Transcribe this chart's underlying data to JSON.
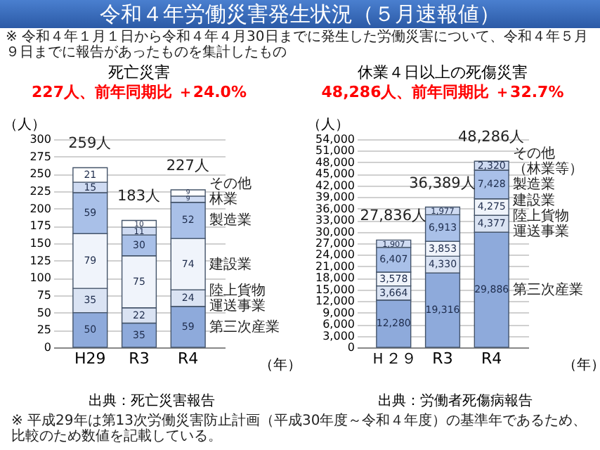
{
  "chart_data": [
    {
      "type": "other",
      "title": "令和４年労働災害発生状況（５月速報値）",
      "annotations": [
        "※ 令和４年１月１日から令和４年４月30日までに発生した労働災害について、令和４年５月９日までに報告があったものを集計したもの",
        "※ 平成29年は第13次労働災害防止計画（平成30年度～令和４年度）の基準年であるため、比較のため数値を記載している。"
      ]
    },
    {
      "type": "bar",
      "title": "死亡災害",
      "subtitle": "227人、前年同期比 ＋24.0%",
      "ylabel": "（人）",
      "xlabel": "（年）",
      "categories": [
        "H29",
        "R3",
        "R4"
      ],
      "stacked": true,
      "data_labels": true,
      "grid": "y",
      "ylim": [
        0,
        300
      ],
      "yticks": [
        0,
        25,
        50,
        75,
        100,
        125,
        150,
        175,
        200,
        225,
        250,
        275,
        300
      ],
      "totals": [
        "259人",
        "183人",
        "227人"
      ],
      "annotations": [
        "出典：死亡災害報告"
      ],
      "series": [
        {
          "name": "第三次産業",
          "color": "#8eaadb",
          "values": [
            50,
            35,
            59
          ]
        },
        {
          "name": "陸上貨物運送事業",
          "color": "#dae3f3",
          "values": [
            35,
            22,
            24
          ]
        },
        {
          "name": "建設業",
          "color": "#f0f4fb",
          "values": [
            79,
            75,
            74
          ]
        },
        {
          "name": "製造業",
          "color": "#a9c0e8",
          "values": [
            59,
            30,
            52
          ]
        },
        {
          "name": "林業",
          "color": "#cfdbf2",
          "values": [
            15,
            11,
            9
          ]
        },
        {
          "name": "その他",
          "color": "#ffffff",
          "values": [
            21,
            10,
            9
          ]
        }
      ]
    },
    {
      "type": "bar",
      "title": "休業４日以上の死傷災害",
      "subtitle": "48,286人、前年同期比 ＋32.7%",
      "ylabel": "（人）",
      "xlabel": "（年）",
      "categories": [
        "Ｈ２９",
        "R3",
        "R4"
      ],
      "stacked": true,
      "grid": "y",
      "ylim": [
        0,
        54000
      ],
      "yticks": [
        {
          "value": 0,
          "label": "0"
        },
        {
          "value": 3000,
          "label": "3,000"
        },
        {
          "value": 6000,
          "label": "6,000"
        },
        {
          "value": 9000,
          "label": "9,000"
        },
        {
          "value": 12000,
          "label": "12,000"
        },
        {
          "value": 15000,
          "label": "15,000"
        },
        {
          "value": 18000,
          "label": "18,000"
        },
        {
          "value": 21000,
          "label": "21,000"
        },
        {
          "value": 24000,
          "label": "24,000"
        },
        {
          "value": 27000,
          "label": "27,000"
        },
        {
          "value": 30000,
          "label": "30,000"
        },
        {
          "value": 33000,
          "label": "33,000"
        },
        {
          "value": 36000,
          "label": "36,000"
        },
        {
          "value": 39000,
          "label": "39,000"
        },
        {
          "value": 42000,
          "label": "42,000"
        },
        {
          "value": 45000,
          "label": "45,000"
        },
        {
          "value": 48000,
          "label": "48,000"
        },
        {
          "value": 51000,
          "label": "51,000"
        },
        {
          "value": 54000,
          "label": "54,000"
        }
      ],
      "totals": [
        "27,836人",
        "36,389人",
        "48,286人"
      ],
      "annotations": [
        "出典：労働者死傷病報告"
      ],
      "series": [
        {
          "name": "第三次産業",
          "color": "#8eaadb",
          "values": [
            12280,
            19316,
            29886
          ],
          "value_labels": [
            "12,280",
            "19,316",
            "29,886"
          ]
        },
        {
          "name": "陸上貨物運送事業",
          "color": "#dae3f3",
          "values": [
            3664,
            4330,
            4377
          ],
          "value_labels": [
            "3,664",
            "4,330",
            "4,377"
          ]
        },
        {
          "name": "建設業",
          "color": "#f0f4fb",
          "values": [
            3578,
            3853,
            4275
          ],
          "value_labels": [
            "3,578",
            "3,853",
            "4,275"
          ]
        },
        {
          "name": "製造業",
          "color": "#a9c0e8",
          "values": [
            6407,
            6913,
            7428
          ],
          "value_labels": [
            "6,407",
            "6,913",
            "7,428"
          ]
        },
        {
          "name": "その他（林業等）",
          "color": "#cfdbf2",
          "values": [
            1907,
            1977,
            2320
          ],
          "value_labels": [
            "1,907",
            "1,977",
            "2,320"
          ]
        }
      ]
    }
  ]
}
